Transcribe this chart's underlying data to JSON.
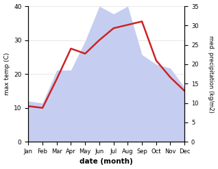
{
  "months": [
    "Jan",
    "Feb",
    "Mar",
    "Apr",
    "May",
    "Jun",
    "Jul",
    "Aug",
    "Sep",
    "Oct",
    "Nov",
    "Dec"
  ],
  "temperature": [
    10.5,
    10.0,
    18.5,
    27.5,
    26.0,
    30.0,
    33.5,
    34.5,
    35.5,
    24.0,
    19.0,
    15.0
  ],
  "precipitation": [
    10.5,
    10.0,
    18.5,
    18.5,
    26.0,
    35.0,
    33.0,
    35.0,
    22.5,
    20.0,
    19.0,
    14.0
  ],
  "temp_color": "#cc2222",
  "precip_fill_color": "#c5cef0",
  "temp_ylim": [
    0,
    40
  ],
  "precip_ylim": [
    0,
    35
  ],
  "temp_yticks": [
    0,
    10,
    20,
    30,
    40
  ],
  "precip_yticks": [
    0,
    5,
    10,
    15,
    20,
    25,
    30,
    35
  ],
  "xlabel": "date (month)",
  "ylabel_left": "max temp (C)",
  "ylabel_right": "med. precipitation (kg/m2)",
  "background_color": "#ffffff"
}
